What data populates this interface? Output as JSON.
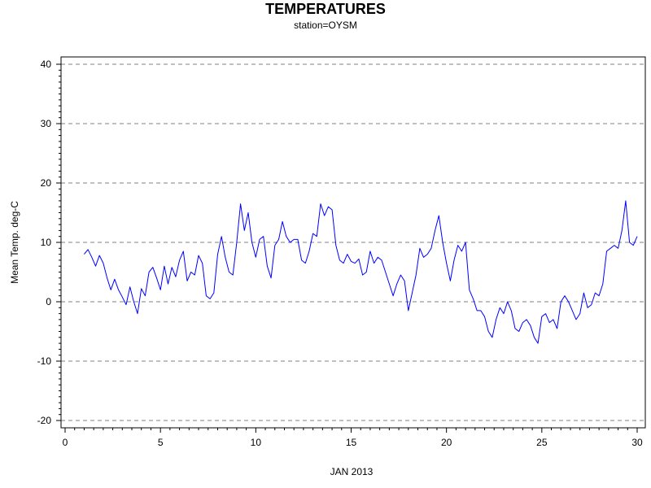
{
  "chart_data": {
    "type": "line",
    "title": "TEMPERATURES",
    "subtitle": "station=OYSM",
    "xlabel": "JAN 2013",
    "ylabel": "Mean Temp. deg-C",
    "xlim": [
      0,
      30.3
    ],
    "ylim": [
      -21,
      41
    ],
    "x_ticks": [
      0,
      5,
      10,
      15,
      20,
      25,
      30
    ],
    "x_tick_labels": [
      "0",
      "5",
      "10",
      "15",
      "20",
      "25",
      "30"
    ],
    "y_ticks": [
      -20,
      -10,
      0,
      10,
      20,
      30,
      40
    ],
    "y_tick_labels": [
      "-20",
      "-10",
      "0",
      "10",
      "20",
      "30",
      "40"
    ],
    "grid": "horizontal dashed at y ticks",
    "line_color": "#0000ff",
    "grid_color": "#808080",
    "series": [
      {
        "x": [
          1.0,
          1.2,
          1.4,
          1.6,
          1.8,
          2.0,
          2.2,
          2.4,
          2.6,
          2.8,
          3.0,
          3.2,
          3.4,
          3.6,
          3.8,
          4.0,
          4.2,
          4.4,
          4.6,
          4.8,
          5.0,
          5.2,
          5.4,
          5.6,
          5.8,
          6.0,
          6.2,
          6.4,
          6.6,
          6.8,
          7.0,
          7.2,
          7.4,
          7.6,
          7.8,
          8.0,
          8.2,
          8.4,
          8.6,
          8.8,
          9.0,
          9.2,
          9.4,
          9.6,
          9.8,
          10.0,
          10.2,
          10.4,
          10.6,
          10.8,
          11.0,
          11.2,
          11.4,
          11.6,
          11.8,
          12.0,
          12.2,
          12.4,
          12.6,
          12.8,
          13.0,
          13.2,
          13.4,
          13.6,
          13.8,
          14.0,
          14.2,
          14.4,
          14.6,
          14.8,
          15.0,
          15.2,
          15.4,
          15.6,
          15.8,
          16.0,
          16.2,
          16.4,
          16.6,
          16.8,
          17.0,
          17.2,
          17.4,
          17.6,
          17.8,
          18.0,
          18.2,
          18.4,
          18.6,
          18.8,
          19.0,
          19.2,
          19.4,
          19.6,
          19.8,
          20.0,
          20.2,
          20.4,
          20.6,
          20.8,
          21.0,
          21.2,
          21.4,
          21.6,
          21.8,
          22.0,
          22.2,
          22.4,
          22.6,
          22.8,
          23.0,
          23.2,
          23.4,
          23.6,
          23.8,
          24.0,
          24.2,
          24.4,
          24.6,
          24.8,
          25.0,
          25.2,
          25.4,
          25.6,
          25.8,
          26.0,
          26.2,
          26.4,
          26.6,
          26.8,
          27.0,
          27.2,
          27.4,
          27.6,
          27.8,
          28.0,
          28.2,
          28.4,
          28.6,
          28.8,
          29.0,
          29.2,
          29.4,
          29.6,
          29.8,
          30.0
        ],
        "y": [
          8.0,
          8.8,
          7.5,
          6.0,
          7.8,
          6.5,
          4.0,
          2.0,
          3.8,
          2.0,
          0.8,
          -0.5,
          2.5,
          0.0,
          -2.0,
          2.2,
          1.0,
          5.0,
          5.8,
          4.0,
          2.0,
          6.0,
          3.0,
          5.8,
          4.2,
          7.0,
          8.5,
          3.5,
          5.0,
          4.5,
          7.8,
          6.5,
          1.0,
          0.5,
          1.5,
          8.0,
          11.0,
          7.5,
          5.0,
          4.5,
          10.0,
          16.5,
          12.0,
          15.0,
          10.0,
          7.5,
          10.5,
          11.0,
          6.0,
          4.0,
          9.5,
          10.5,
          13.5,
          11.0,
          10.0,
          10.5,
          10.5,
          7.0,
          6.5,
          8.5,
          11.5,
          11.0,
          16.5,
          14.5,
          16.0,
          15.5,
          9.5,
          7.0,
          6.5,
          8.0,
          6.8,
          6.5,
          7.2,
          4.5,
          5.0,
          8.5,
          6.5,
          7.5,
          7.0,
          5.0,
          3.0,
          1.0,
          3.0,
          4.5,
          3.5,
          -1.5,
          1.5,
          4.5,
          9.0,
          7.5,
          8.0,
          9.0,
          12.0,
          14.5,
          10.0,
          6.5,
          3.5,
          7.0,
          9.5,
          8.5,
          10.0,
          2.0,
          0.5,
          -1.5,
          -1.5,
          -2.5,
          -5.0,
          -6.0,
          -3.0,
          -1.0,
          -2.0,
          0.0,
          -1.5,
          -4.5,
          -5.0,
          -3.5,
          -3.0,
          -4.0,
          -6.0,
          -7.0,
          -2.5,
          -2.0,
          -3.5,
          -3.0,
          -4.5,
          0.0,
          1.0,
          0.0,
          -1.5,
          -3.0,
          -2.0,
          1.5,
          -1.0,
          -0.5,
          1.5,
          1.0,
          3.0,
          8.5,
          9.0,
          9.5,
          9.0,
          12.0,
          17.0,
          10.0,
          9.5,
          11.0
        ]
      }
    ]
  }
}
